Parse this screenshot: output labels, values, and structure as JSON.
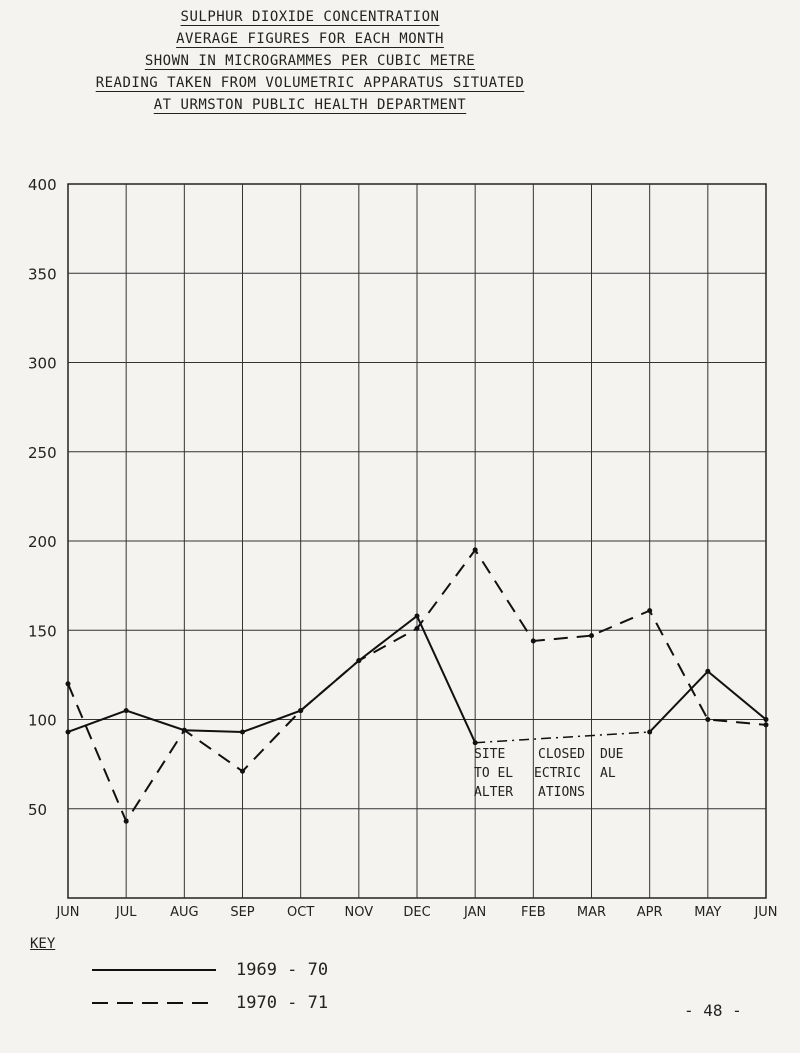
{
  "title_lines": [
    "SULPHUR DIOXIDE CONCENTRATION",
    "AVERAGE FIGURES FOR EACH MONTH",
    "SHOWN IN MICROGRAMMES PER CUBIC METRE",
    "READING TAKEN FROM VOLUMETRIC APPARATUS SITUATED",
    "AT URMSTON PUBLIC HEALTH DEPARTMENT"
  ],
  "chart_data": {
    "type": "line",
    "categories": [
      "JUN",
      "JUL",
      "AUG",
      "SEP",
      "OCT",
      "NOV",
      "DEC",
      "JAN",
      "FEB",
      "MAR",
      "APR",
      "MAY",
      "JUN"
    ],
    "ylim": [
      0,
      400
    ],
    "yticks": [
      50,
      100,
      150,
      200,
      250,
      300,
      350,
      400
    ],
    "grid": true,
    "series": [
      {
        "name": "1969 - 70",
        "style": "solid",
        "values": [
          93,
          105,
          94,
          93,
          105,
          133,
          158,
          87,
          null,
          null,
          93,
          127,
          100
        ]
      },
      {
        "name": "1970 - 71",
        "style": "dashed",
        "values": [
          120,
          43,
          94,
          71,
          105,
          133,
          151,
          195,
          144,
          147,
          161,
          100,
          97
        ]
      }
    ],
    "annotation": {
      "lines": [
        "SITE",
        "TO EL",
        "ALTER",
        "CLOSED",
        "ECTRIC",
        "ATIONS",
        "DUE",
        "AL"
      ]
    }
  },
  "key_label": "KEY",
  "page_number": "- 48 -"
}
